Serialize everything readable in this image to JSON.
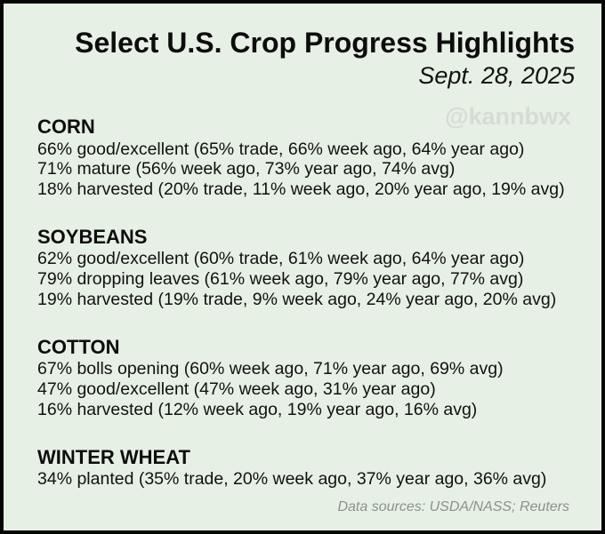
{
  "page": {
    "title": "Select U.S. Crop Progress Highlights",
    "date": "Sept. 28, 2025",
    "watermark": "@kannbwx",
    "footer": "Data sources: USDA/NASS; Reuters"
  },
  "colors": {
    "background": "#e7f0e5",
    "border": "#050505",
    "text": "#111111",
    "watermark": "#d6dcd4",
    "footer_gray": "#8a928a"
  },
  "sections": [
    {
      "name": "CORN",
      "lines": [
        "66% good/excellent (65% trade, 66% week ago, 64% year ago)",
        "71% mature (56% week ago, 73% year ago, 74% avg)",
        "18% harvested (20% trade, 11% week ago, 20% year ago, 19% avg)"
      ]
    },
    {
      "name": "SOYBEANS",
      "lines": [
        "62% good/excellent (60% trade, 61% week ago, 64% year ago)",
        "79% dropping leaves (61% week ago, 79% year ago, 77% avg)",
        "19% harvested (19% trade, 9% week ago, 24% year ago, 20% avg)"
      ]
    },
    {
      "name": "COTTON",
      "lines": [
        "67% bolls opening (60% week ago, 71% year ago, 69% avg)",
        "47% good/excellent (47% week ago, 31% year ago)",
        "16% harvested (12% week ago, 19% year ago, 16% avg)"
      ]
    },
    {
      "name": "WINTER WHEAT",
      "lines": [
        "34% planted (35% trade, 20% week ago, 37% year ago, 36% avg)"
      ]
    }
  ]
}
